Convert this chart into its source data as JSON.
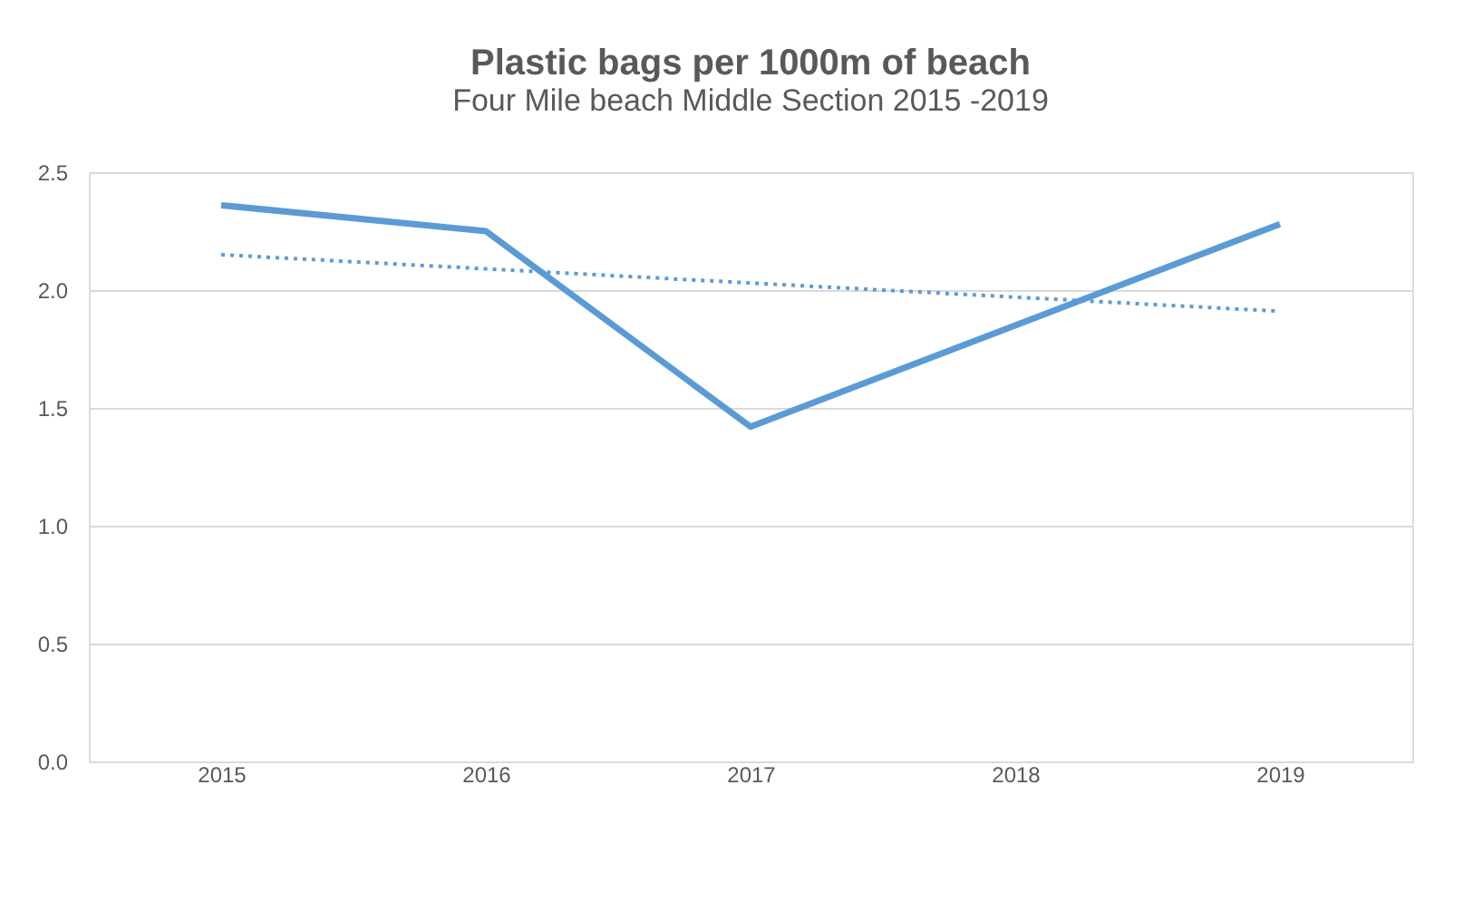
{
  "chart_data": {
    "type": "line",
    "title": "Plastic bags per 1000m of beach",
    "subtitle": "Four Mile beach Middle Section 2015 -2019",
    "categories": [
      "2015",
      "2016",
      "2017",
      "2018",
      "2019"
    ],
    "series": [
      {
        "color": "#5b9bd5",
        "values": [
          2.36,
          2.25,
          1.42,
          1.85,
          2.28
        ],
        "line_style": "solid"
      },
      {
        "type": "line",
        "color": "#5b9bd5",
        "values": [
          2.15,
          2.09,
          2.03,
          1.97,
          1.91
        ],
        "line_style": "dotted"
      }
    ],
    "ylim": [
      0,
      2.5
    ],
    "yticks": [
      {
        "value": 0,
        "label": "0.0"
      },
      {
        "value": 0.5,
        "label": "0.5"
      },
      {
        "value": 1,
        "label": "1.0"
      },
      {
        "value": 1.5,
        "label": "1.5"
      },
      {
        "value": 2,
        "label": "2.0"
      },
      {
        "value": 2.5,
        "label": "2.5"
      }
    ],
    "grid": "y",
    "marker": "none"
  }
}
